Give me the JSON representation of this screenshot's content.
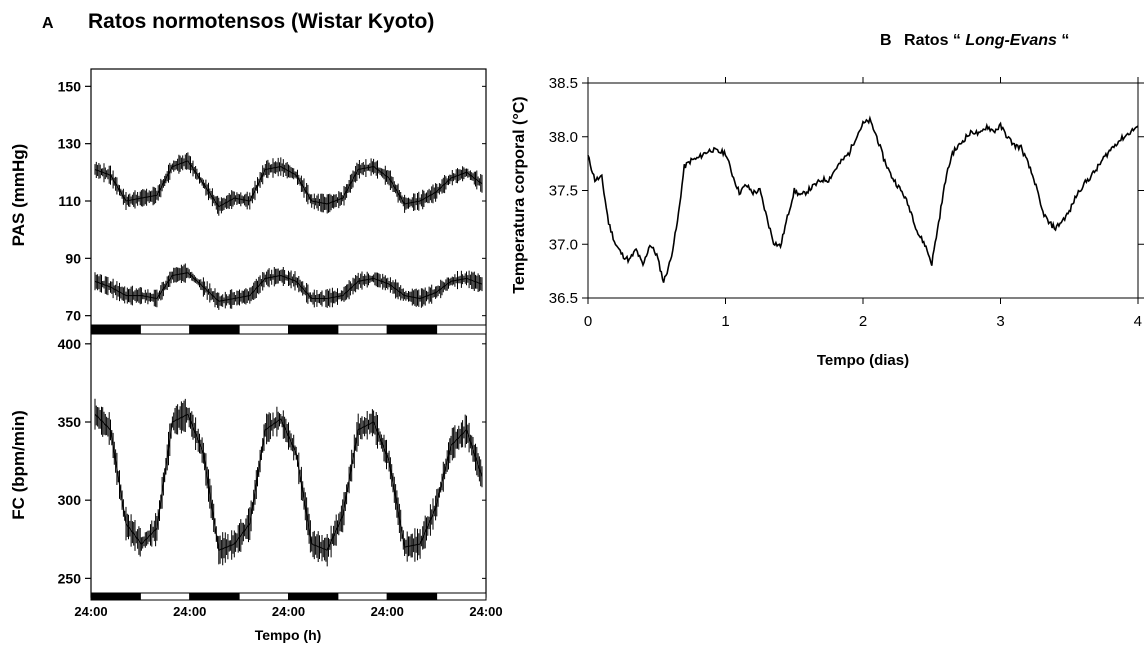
{
  "chart_data": [
    {
      "panel": "A",
      "type": "line",
      "title_letter": "A",
      "title": "Ratos normotensos (Wistar Kyoto)",
      "xlabel": "Tempo (h)",
      "x_ticks": [
        "24:00",
        "24:00",
        "24:00",
        "24:00",
        "24:00"
      ],
      "subplots": [
        {
          "ylabel": "PAS (mmHg)",
          "ylim": [
            65,
            155
          ],
          "y_ticks": [
            70,
            90,
            110,
            130,
            150
          ],
          "series": [
            {
              "values": [
                121,
                119,
                110,
                111,
                112,
                122,
                124,
                116,
                108,
                111,
                110,
                121,
                122,
                119,
                110,
                109,
                111,
                121,
                122,
                118,
                109,
                110,
                113,
                118,
                120,
                116
              ]
            },
            {
              "values": [
                82,
                80,
                77,
                77,
                76,
                84,
                85,
                80,
                75,
                76,
                77,
                83,
                84,
                82,
                76,
                76,
                77,
                82,
                83,
                81,
                77,
                76,
                78,
                82,
                83,
                81
              ]
            }
          ]
        },
        {
          "ylabel": "FC (bpm/min)",
          "ylim": [
            240,
            405
          ],
          "y_ticks": [
            250,
            300,
            350,
            400
          ],
          "series": [
            {
              "values": [
                355,
                345,
                285,
                272,
                282,
                350,
                355,
                330,
                268,
                272,
                285,
                345,
                352,
                330,
                272,
                268,
                290,
                345,
                350,
                325,
                270,
                272,
                295,
                335,
                345,
                315
              ]
            }
          ]
        }
      ]
    },
    {
      "panel": "B",
      "type": "line",
      "title_letter": "B",
      "title_prefix": "Ratos ",
      "title_quote_open": "“",
      "title_strain": "Long-Evans",
      "title_quote_close": "“",
      "xlabel": "Tempo (dias)",
      "ylabel": "Temperatura corporal (°C)",
      "xlim": [
        0,
        4
      ],
      "ylim": [
        36.5,
        38.5
      ],
      "x_ticks": [
        "0",
        "1",
        "2",
        "3",
        "4"
      ],
      "y_ticks": [
        "36.5",
        "37.0",
        "37.5",
        "38.0",
        "38.5"
      ],
      "x": [
        0,
        0.05,
        0.1,
        0.15,
        0.2,
        0.25,
        0.3,
        0.35,
        0.4,
        0.45,
        0.5,
        0.55,
        0.6,
        0.65,
        0.7,
        0.75,
        0.8,
        0.85,
        0.9,
        0.95,
        1.0,
        1.05,
        1.1,
        1.15,
        1.2,
        1.25,
        1.3,
        1.35,
        1.4,
        1.45,
        1.5,
        1.55,
        1.6,
        1.65,
        1.7,
        1.75,
        1.8,
        1.85,
        1.9,
        1.95,
        2.0,
        2.05,
        2.1,
        2.15,
        2.2,
        2.25,
        2.3,
        2.35,
        2.4,
        2.45,
        2.5,
        2.55,
        2.6,
        2.65,
        2.7,
        2.75,
        2.8,
        2.85,
        2.9,
        2.95,
        3.0,
        3.05,
        3.1,
        3.15,
        3.2,
        3.25,
        3.3,
        3.35,
        3.4,
        3.45,
        3.5,
        3.55,
        3.6,
        3.65,
        3.7,
        3.75,
        3.8,
        3.85,
        3.9,
        3.95,
        4.0
      ],
      "y": [
        37.82,
        37.6,
        37.62,
        37.2,
        37.0,
        36.9,
        36.85,
        36.95,
        36.8,
        37.0,
        36.9,
        36.65,
        36.85,
        37.2,
        37.72,
        37.78,
        37.8,
        37.85,
        37.88,
        37.86,
        37.85,
        37.65,
        37.48,
        37.55,
        37.48,
        37.5,
        37.25,
        37.02,
        36.98,
        37.25,
        37.5,
        37.45,
        37.5,
        37.55,
        37.6,
        37.6,
        37.7,
        37.78,
        37.85,
        38.0,
        38.12,
        38.15,
        38.0,
        37.8,
        37.65,
        37.55,
        37.45,
        37.3,
        37.1,
        37.0,
        36.82,
        37.2,
        37.6,
        37.85,
        37.92,
        38.0,
        38.05,
        38.02,
        38.1,
        38.05,
        38.1,
        38.0,
        37.92,
        37.9,
        37.75,
        37.58,
        37.32,
        37.2,
        37.15,
        37.22,
        37.3,
        37.45,
        37.55,
        37.62,
        37.7,
        37.8,
        37.88,
        37.95,
        38.0,
        38.05,
        38.1
      ],
      "grid": false
    }
  ]
}
